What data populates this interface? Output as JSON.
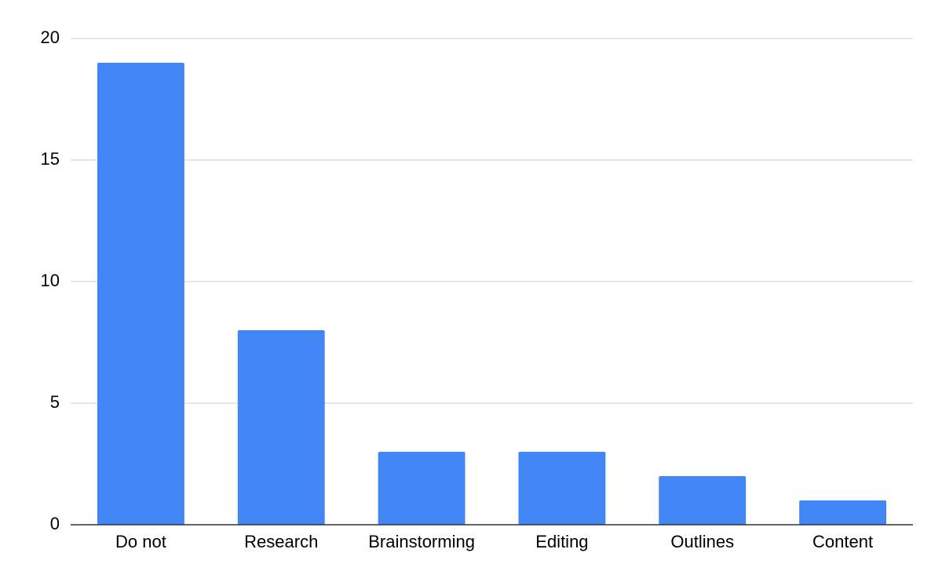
{
  "chart_data": {
    "type": "bar",
    "categories": [
      "Do not",
      "Research",
      "Brainstorming",
      "Editing",
      "Outlines",
      "Content"
    ],
    "values": [
      19,
      8,
      3,
      3,
      2,
      1
    ],
    "color": "#4285f4",
    "ylim": [
      0,
      20
    ],
    "yticks": [
      0,
      5,
      10,
      15,
      20
    ],
    "grid": true
  }
}
